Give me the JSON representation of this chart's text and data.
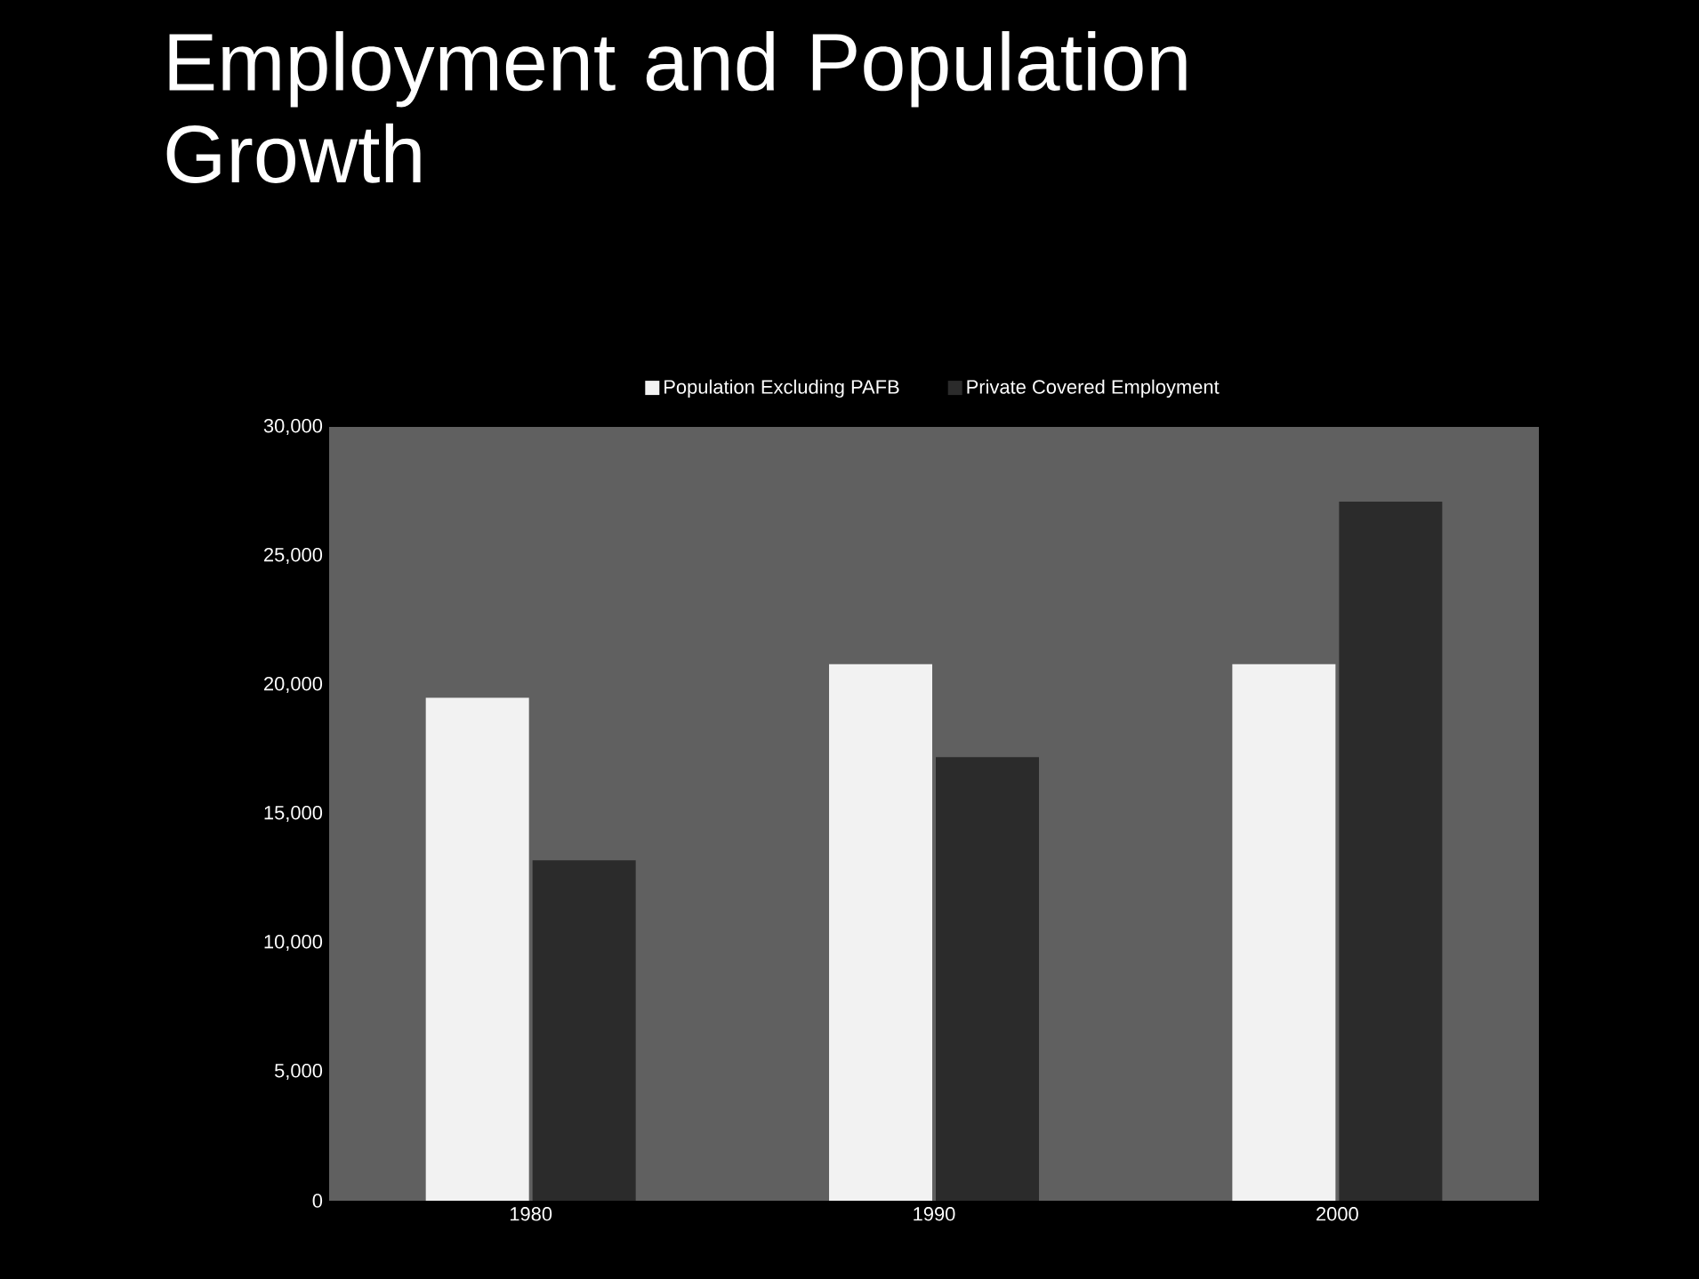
{
  "chart_data": {
    "type": "bar",
    "title": "Employment and Population Growth",
    "categories": [
      "1980",
      "1990",
      "2000"
    ],
    "series": [
      {
        "name": "Population Excluding PAFB",
        "color": "#f2f2f2",
        "values": [
          19500,
          20800,
          20800
        ]
      },
      {
        "name": "Private Covered Employment",
        "color": "#2b2b2b",
        "values": [
          13200,
          17200,
          27100
        ]
      }
    ],
    "ylim": [
      0,
      30000
    ],
    "yticks": [
      0,
      {
        "value": 5000,
        "label": "5,000"
      },
      {
        "value": 10000,
        "label": "10,000"
      },
      {
        "value": 15000,
        "label": "15,000"
      },
      {
        "value": 20000,
        "label": "20,000"
      },
      {
        "value": 25000,
        "label": "25,000"
      },
      {
        "value": 30000,
        "label": "30,000"
      }
    ],
    "legend": "top"
  }
}
